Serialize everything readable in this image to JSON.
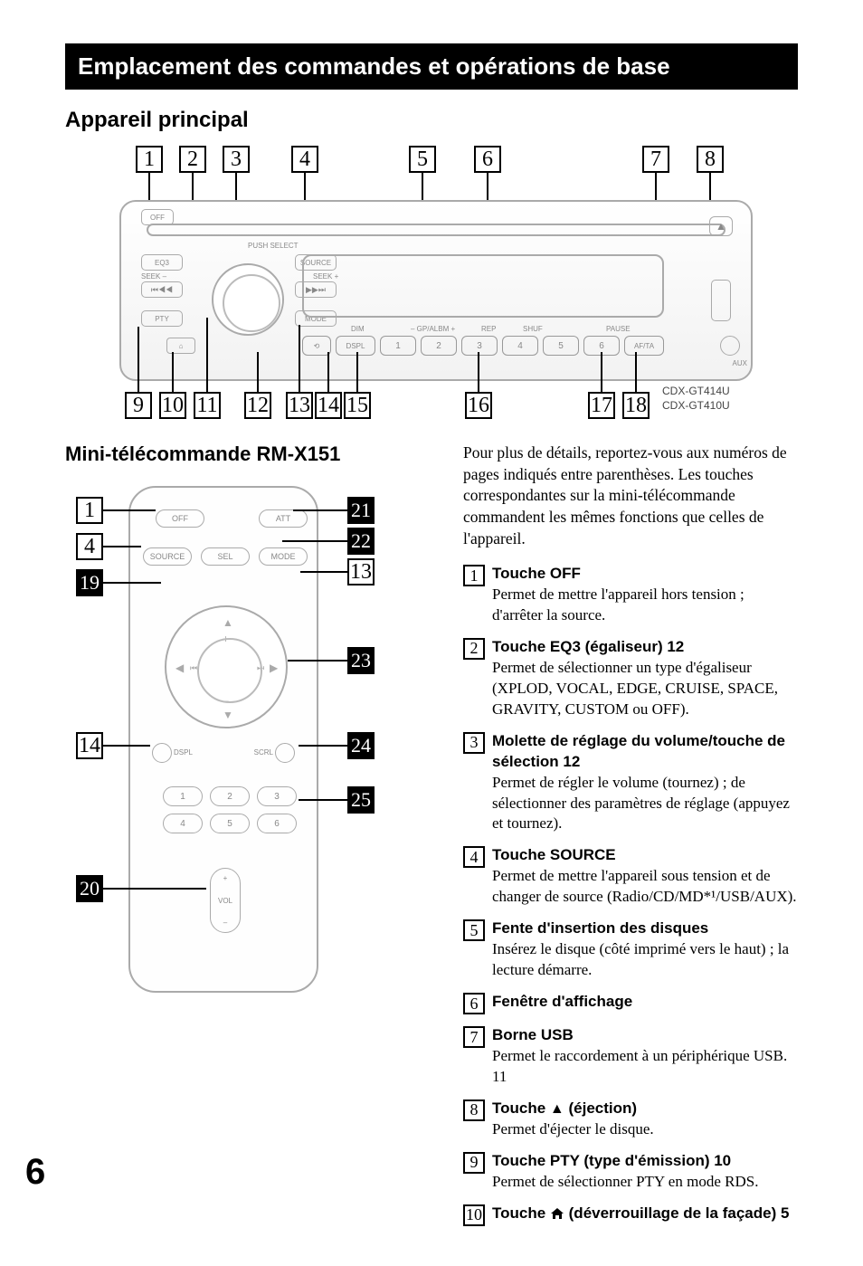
{
  "header": "Emplacement des commandes et opérations de base",
  "section_main": "Appareil principal",
  "section_remote": "Mini-télécommande RM-X151",
  "models": {
    "a": "CDX-GT414U",
    "b": "CDX-GT410U"
  },
  "unit_labels": {
    "off": "OFF",
    "eq3": "EQ3",
    "seek_minus": "SEEK –",
    "seek_plus": "SEEK +",
    "pty": "PTY",
    "push_select": "PUSH SELECT",
    "source": "SOURCE",
    "mode": "MODE",
    "dim": "DIM",
    "gp_albm": "GP/ALBM",
    "rep": "REP",
    "shuf": "SHUF",
    "pause": "PAUSE",
    "dspl": "DSPL",
    "afta": "AF/TA",
    "aux": "AUX",
    "n1": "1",
    "n2": "2",
    "n3": "3",
    "n4": "4",
    "n5": "5",
    "n6": "6",
    "prev": "⏮◀◀",
    "next": "▶▶⏭",
    "eject": "▲"
  },
  "remote_labels": {
    "off": "OFF",
    "att": "ATT",
    "source": "SOURCE",
    "sel": "SEL",
    "mode": "MODE",
    "dspl": "DSPL",
    "scrl": "SCRL",
    "plus": "+",
    "minus": "–",
    "vol": "VOL",
    "n1": "1",
    "n2": "2",
    "n3": "3",
    "n4": "4",
    "n5": "5",
    "n6": "6"
  },
  "top_callouts": [
    "1",
    "2",
    "3",
    "4",
    "5",
    "6",
    "7",
    "8"
  ],
  "bottom_callouts": [
    "9",
    "10",
    "11",
    "12",
    "13",
    "14",
    "15",
    "16",
    "17",
    "18"
  ],
  "remote_left_callouts": {
    "a": {
      "n": "1",
      "solid": false
    },
    "b": {
      "n": "4",
      "solid": false
    },
    "c": {
      "n": "19",
      "solid": true
    },
    "d": {
      "n": "14",
      "solid": false
    },
    "e": {
      "n": "20",
      "solid": true
    }
  },
  "remote_right_callouts": {
    "a": {
      "n": "21",
      "solid": true
    },
    "b": {
      "n": "22",
      "solid": true
    },
    "c": {
      "n": "13",
      "solid": false
    },
    "d": {
      "n": "23",
      "solid": true
    },
    "e": {
      "n": "24",
      "solid": true
    },
    "f": {
      "n": "25",
      "solid": true
    }
  },
  "intro": "Pour plus de détails, reportez-vous aux numéros de pages indiqués entre parenthèses. Les touches correspondantes sur la mini-télécommande commandent les mêmes fonctions que celles de l'appareil.",
  "items": [
    {
      "n": "1",
      "title": "Touche OFF",
      "desc": "Permet de mettre l'appareil hors tension ; d'arrêter la source."
    },
    {
      "n": "2",
      "title": "Touche EQ3 (égaliseur)  12",
      "desc": "Permet de sélectionner un type d'égaliseur (XPLOD, VOCAL, EDGE, CRUISE, SPACE, GRAVITY, CUSTOM ou OFF)."
    },
    {
      "n": "3",
      "title": "Molette de réglage du volume/touche de sélection  12",
      "desc": "Permet de régler le volume (tournez) ; de sélectionner des paramètres de réglage (appuyez et tournez)."
    },
    {
      "n": "4",
      "title": "Touche SOURCE",
      "desc": "Permet de mettre l'appareil sous tension et de changer de source (Radio/CD/MD*¹/USB/AUX)."
    },
    {
      "n": "5",
      "title": "Fente d'insertion des disques",
      "desc": "Insérez le disque (côté imprimé vers le haut) ; la lecture démarre."
    },
    {
      "n": "6",
      "title": "Fenêtre d'affichage",
      "desc": ""
    },
    {
      "n": "7",
      "title": "Borne USB",
      "desc": "Permet le raccordement à un périphérique USB.  11"
    },
    {
      "n": "8",
      "title": "Touche ▲ (éjection)",
      "desc": "Permet d'éjecter le disque.",
      "eject": true
    },
    {
      "n": "9",
      "title": "Touche PTY (type d'émission)  10",
      "desc": "Permet de sélectionner PTY en mode RDS."
    },
    {
      "n": "10",
      "title": "Touche 🏠 (déverrouillage de la façade)  5",
      "desc": "",
      "house": true
    }
  ],
  "page_number": "6"
}
